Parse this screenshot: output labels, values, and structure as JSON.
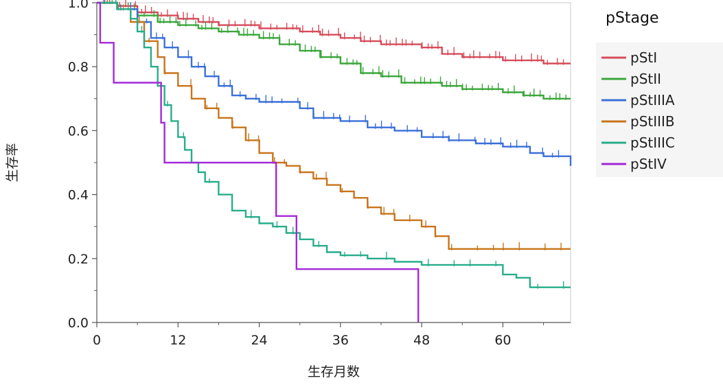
{
  "chart_data": {
    "type": "line",
    "xlabel": "生存月数",
    "ylabel": "生存率",
    "xlim": [
      0,
      70
    ],
    "ylim": [
      0,
      1.0
    ],
    "xticks": [
      0,
      12,
      24,
      36,
      48,
      60
    ],
    "yticks": [
      0.0,
      0.2,
      0.4,
      0.6,
      0.8,
      1.0
    ],
    "grid": false,
    "legend": {
      "title": "pStage",
      "placement": "right"
    },
    "series": [
      {
        "name": "pStI",
        "color": "#d64b5a",
        "x": [
          0,
          3,
          6,
          9,
          12,
          15,
          18,
          21,
          24,
          27,
          30,
          33,
          36,
          39,
          42,
          45,
          48,
          51,
          54,
          57,
          60,
          63,
          66,
          70
        ],
        "y": [
          1.0,
          0.99,
          0.97,
          0.96,
          0.95,
          0.94,
          0.93,
          0.93,
          0.92,
          0.92,
          0.91,
          0.9,
          0.89,
          0.88,
          0.87,
          0.87,
          0.86,
          0.84,
          0.83,
          0.83,
          0.82,
          0.82,
          0.81,
          0.81
        ]
      },
      {
        "name": "pStII",
        "color": "#3aa63a",
        "x": [
          0,
          3,
          6,
          9,
          12,
          15,
          18,
          21,
          24,
          27,
          30,
          33,
          36,
          39,
          42,
          45,
          48,
          51,
          54,
          57,
          60,
          63,
          66,
          70
        ],
        "y": [
          1.0,
          0.98,
          0.96,
          0.94,
          0.93,
          0.92,
          0.91,
          0.9,
          0.89,
          0.87,
          0.85,
          0.83,
          0.81,
          0.78,
          0.77,
          0.75,
          0.75,
          0.74,
          0.73,
          0.73,
          0.72,
          0.71,
          0.7,
          0.7
        ]
      },
      {
        "name": "pStIIIA",
        "color": "#3a6fd8",
        "x": [
          0,
          3,
          6,
          8,
          10,
          12,
          14,
          16,
          18,
          20,
          22,
          24,
          28,
          30,
          32,
          36,
          40,
          44,
          48,
          52,
          56,
          58,
          60,
          64,
          66,
          70
        ],
        "y": [
          1.0,
          0.98,
          0.94,
          0.89,
          0.86,
          0.83,
          0.8,
          0.77,
          0.74,
          0.71,
          0.7,
          0.69,
          0.69,
          0.67,
          0.64,
          0.63,
          0.61,
          0.6,
          0.58,
          0.57,
          0.56,
          0.56,
          0.55,
          0.53,
          0.52,
          0.49
        ]
      },
      {
        "name": "pStIIIB",
        "color": "#c8741a",
        "x": [
          0,
          3,
          5,
          7,
          9,
          10,
          12,
          14,
          16,
          18,
          20,
          22,
          24,
          26,
          28,
          30,
          32,
          34,
          36,
          38,
          40,
          42,
          44,
          46,
          48,
          50,
          52,
          60,
          70
        ],
        "y": [
          1.0,
          0.98,
          0.94,
          0.88,
          0.83,
          0.78,
          0.74,
          0.7,
          0.67,
          0.64,
          0.61,
          0.57,
          0.53,
          0.5,
          0.49,
          0.47,
          0.45,
          0.43,
          0.41,
          0.39,
          0.36,
          0.34,
          0.32,
          0.32,
          0.3,
          0.27,
          0.23,
          0.23,
          0.23
        ]
      },
      {
        "name": "pStIIIC",
        "color": "#27ad8a",
        "x": [
          0,
          3,
          5,
          6,
          7,
          8,
          9,
          10,
          11,
          12,
          13,
          14,
          15,
          16,
          18,
          20,
          22,
          24,
          26,
          28,
          30,
          32,
          34,
          36,
          40,
          44,
          48,
          52,
          56,
          60,
          62,
          64,
          70
        ],
        "y": [
          1.0,
          0.98,
          0.95,
          0.91,
          0.86,
          0.8,
          0.74,
          0.68,
          0.63,
          0.58,
          0.54,
          0.5,
          0.47,
          0.44,
          0.4,
          0.35,
          0.33,
          0.31,
          0.3,
          0.28,
          0.26,
          0.24,
          0.22,
          0.21,
          0.2,
          0.19,
          0.18,
          0.18,
          0.18,
          0.15,
          0.14,
          0.11,
          0.11
        ]
      },
      {
        "name": "pStIV",
        "color": "#a228d8",
        "x": [
          0,
          0.5,
          2.5,
          9.5,
          10,
          26.5,
          29.5,
          47.5
        ],
        "y": [
          1.0,
          0.875,
          0.75,
          0.625,
          0.5,
          0.333,
          0.167,
          0.0
        ]
      }
    ]
  }
}
